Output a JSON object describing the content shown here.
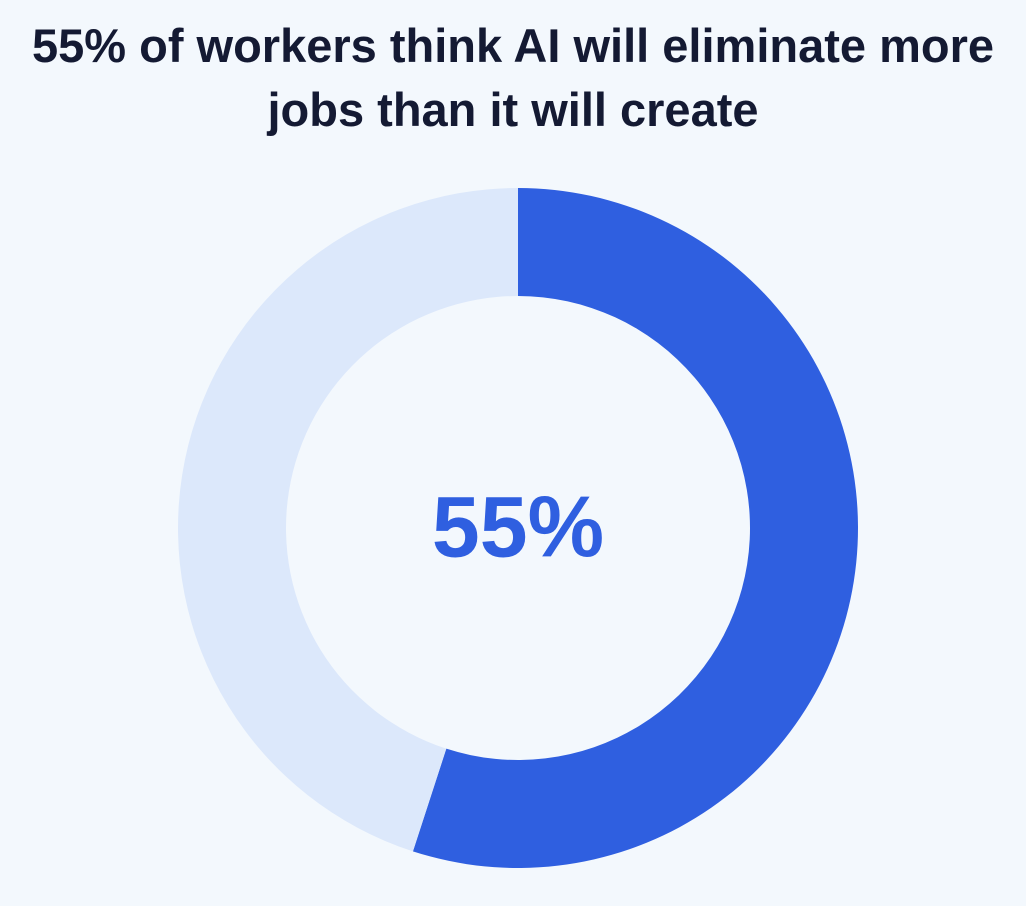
{
  "chart_data": {
    "type": "donut",
    "title": "55% of workers think AI will eliminate more jobs than it will create",
    "values": [
      55,
      45
    ],
    "value_labels": [
      "55%",
      null
    ],
    "colors": [
      "#2f5fe0",
      "#dce8fb"
    ]
  }
}
